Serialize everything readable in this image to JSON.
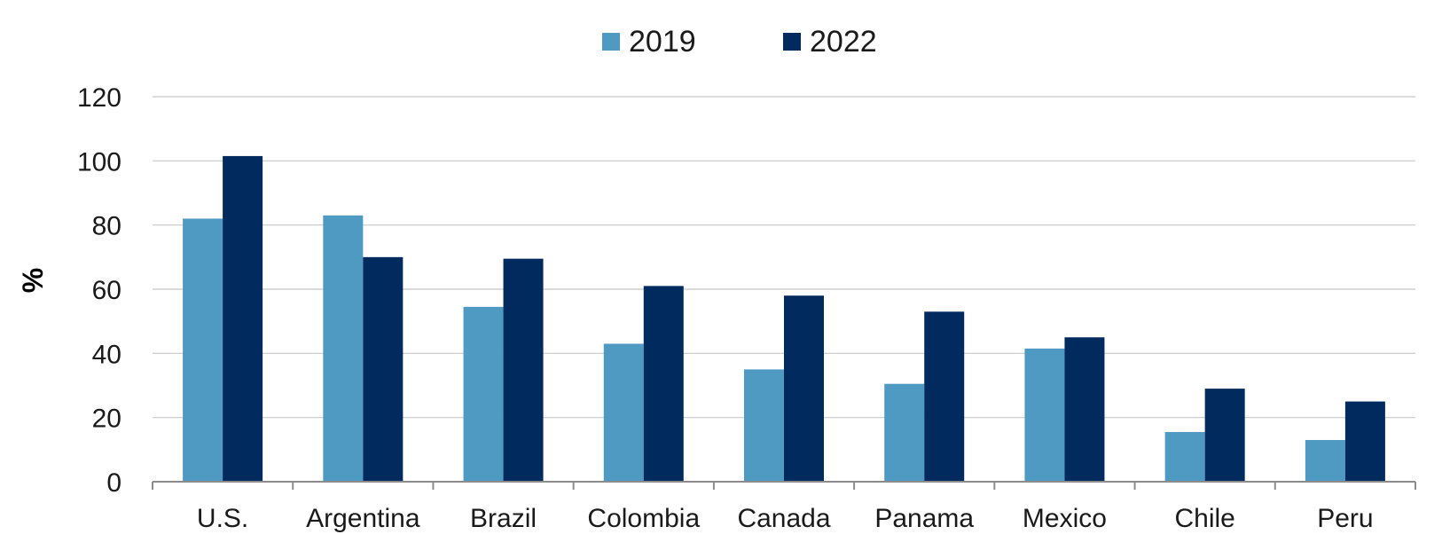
{
  "chart_data": {
    "type": "bar",
    "title": "",
    "xlabel": "",
    "ylabel": "%",
    "ylim": [
      0,
      120
    ],
    "yticks": [
      "0",
      "20",
      "40",
      "60",
      "80",
      "100",
      "120"
    ],
    "grid": true,
    "legend_position": "top-center",
    "categories": [
      "U.S.",
      "Argentina",
      "Brazil",
      "Colombia",
      "Canada",
      "Panama",
      "Mexico",
      "Chile",
      "Peru"
    ],
    "series": [
      {
        "name": "2019",
        "color": "#4f9ac3",
        "values": [
          82,
          83,
          54.5,
          43,
          35,
          30.5,
          41.5,
          15.5,
          13
        ]
      },
      {
        "name": "2022",
        "color": "#012a5e",
        "values": [
          101.5,
          70,
          69.5,
          61,
          58,
          53,
          45,
          29,
          25
        ]
      }
    ]
  }
}
